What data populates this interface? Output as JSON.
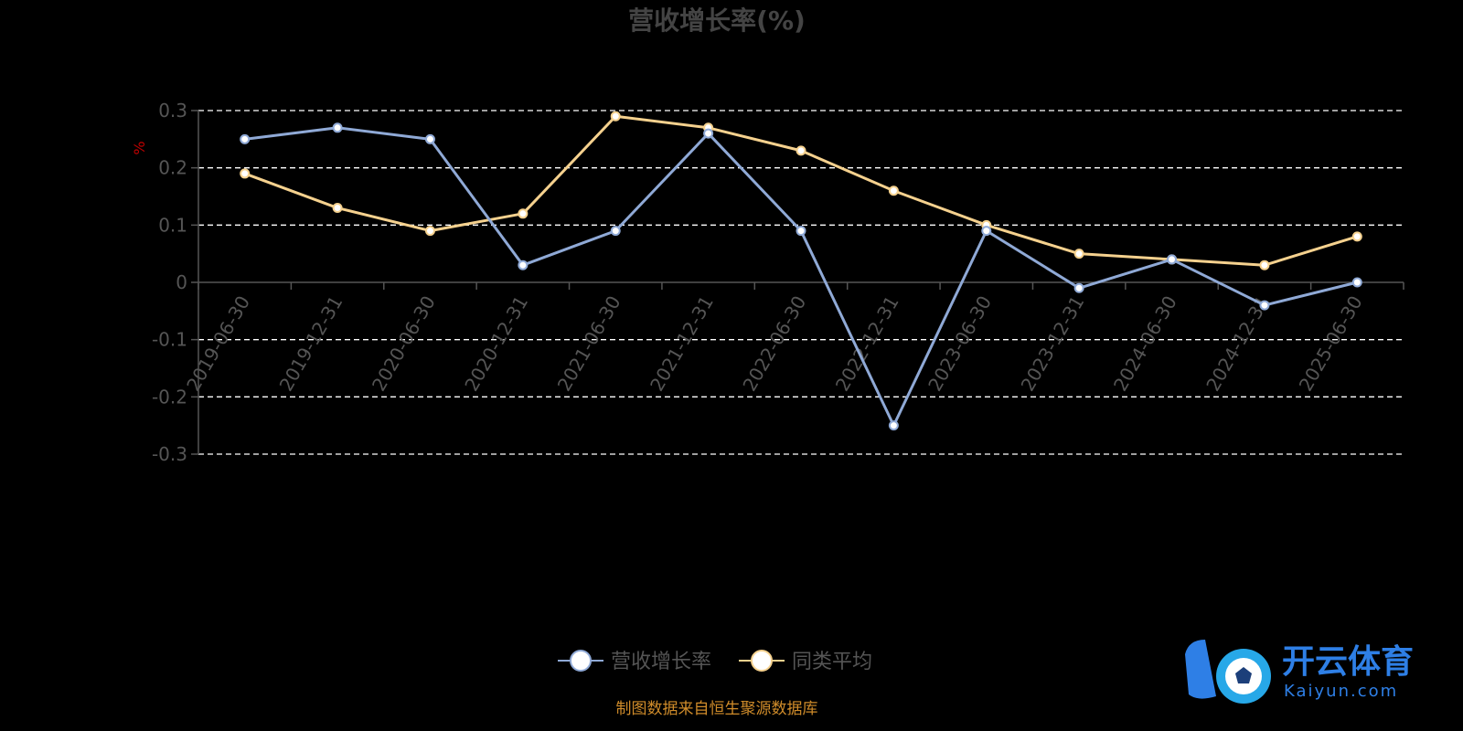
{
  "chart_data": {
    "type": "line",
    "title": "营收增长率(%)",
    "ylabel": "%",
    "ylim": [
      -0.3,
      0.3
    ],
    "yticks": [
      -0.3,
      -0.2,
      -0.1,
      0,
      0.1,
      0.2,
      0.3
    ],
    "ytick_labels": [
      "-0.3",
      "-0.2",
      "-0.1",
      "0",
      "0.1",
      "0.2",
      "0.3"
    ],
    "grid": true,
    "legend_position": "bottom",
    "categories": [
      "2019-06-30",
      "2019-12-31",
      "2020-06-30",
      "2020-12-31",
      "2021-06-30",
      "2021-12-31",
      "2022-06-30",
      "2022-12-31",
      "2023-06-30",
      "2023-12-31",
      "2024-06-30",
      "2024-12-31",
      "2025-06-30"
    ],
    "series": [
      {
        "name": "营收增长率",
        "color": "#8fa9d6",
        "values": [
          0.25,
          0.27,
          0.25,
          0.03,
          0.09,
          0.26,
          0.09,
          -0.25,
          0.09,
          -0.01,
          0.04,
          -0.04,
          0.0
        ]
      },
      {
        "name": "同类平均",
        "color": "#f5d18e",
        "values": [
          0.19,
          0.13,
          0.09,
          0.12,
          0.29,
          0.27,
          0.23,
          0.16,
          0.1,
          0.05,
          0.04,
          0.03,
          0.08
        ]
      }
    ]
  },
  "source_text": "制图数据来自恒生聚源数据库",
  "watermark": {
    "cn": "开云体育",
    "en": "Kaiyun.com"
  },
  "colors": {
    "background": "#000000",
    "grid": "#ffffff",
    "axis": "#555555"
  }
}
